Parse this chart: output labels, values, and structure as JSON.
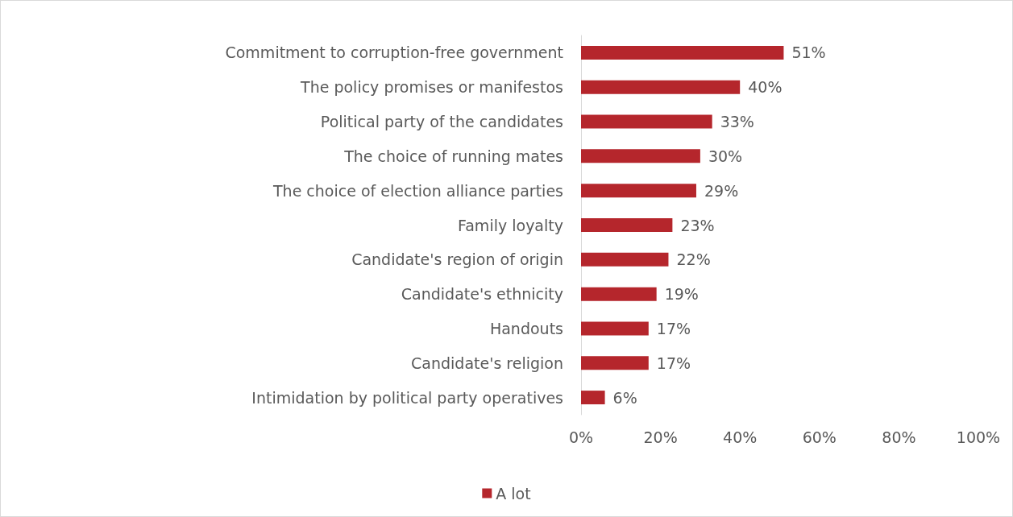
{
  "chart_data": {
    "type": "bar",
    "orientation": "horizontal",
    "categories": [
      "Commitment to corruption-free government",
      "The policy promises or manifestos",
      "Political party of the candidates",
      "The choice of running mates",
      "The choice of election alliance parties",
      "Family loyalty",
      "Candidate's region of origin",
      "Candidate's ethnicity",
      "Handouts",
      "Candidate's religion",
      "Intimidation by political party operatives"
    ],
    "series": [
      {
        "name": "A lot",
        "color": "#b5262c",
        "values": [
          51,
          40,
          33,
          30,
          29,
          23,
          22,
          19,
          17,
          17,
          6
        ],
        "value_labels": [
          "51%",
          "40%",
          "33%",
          "30%",
          "29%",
          "23%",
          "22%",
          "19%",
          "17%",
          "17%",
          "6%"
        ]
      }
    ],
    "xlim": [
      0,
      100
    ],
    "xticks": [
      {
        "value": 0,
        "label": "0%"
      },
      {
        "value": 20,
        "label": "20%"
      },
      {
        "value": 40,
        "label": "40%"
      },
      {
        "value": 60,
        "label": "60%"
      },
      {
        "value": 80,
        "label": "80%"
      },
      {
        "value": 100,
        "label": "100%"
      }
    ],
    "grid": false,
    "legend": "bottom"
  }
}
